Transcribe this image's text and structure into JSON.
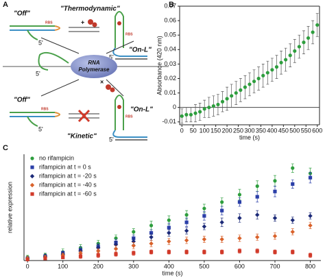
{
  "diagram": {
    "panel_label": "A",
    "thermodynamic": "\"Thermodynamic\"",
    "kinetic": "\"Kinetic\"",
    "off_top": "\"Off\"",
    "on_top": "\"On-L\"",
    "off_bottom": "\"Off\"",
    "on_bottom": "\"On-L\"",
    "polymerase": [
      "RNA",
      "Polymerase"
    ],
    "rbs": [
      "RBS",
      "RBS",
      "RBS",
      "RBS"
    ],
    "five_prime": [
      "5'",
      "5'",
      "5'",
      "5'",
      "5'"
    ],
    "plus": "+",
    "times": "×"
  },
  "chart_data": [
    {
      "type": "scatter",
      "panel_label": "B",
      "xlabel": "time (s)",
      "ylabel": "Absorbance (420 nm)",
      "xlim": [
        -10,
        610
      ],
      "ylim": [
        -0.012,
        0.07
      ],
      "xticks": [
        0,
        50,
        100,
        150,
        200,
        250,
        300,
        350,
        400,
        450,
        500,
        550,
        600
      ],
      "yticks": [
        -0.01,
        0,
        0.01,
        0.02,
        0.03,
        0.04,
        0.05,
        0.06,
        0.07
      ],
      "zero_line": true,
      "series": [
        {
          "color": "#2e9e3e",
          "marker": "circle",
          "x": [
            0,
            20,
            40,
            60,
            80,
            100,
            120,
            140,
            160,
            180,
            200,
            220,
            240,
            260,
            280,
            300,
            320,
            340,
            360,
            380,
            400,
            420,
            440,
            460,
            480,
            500,
            520,
            540,
            560,
            580,
            600
          ],
          "values": [
            -0.006,
            -0.005,
            -0.005,
            -0.004,
            -0.003,
            -0.001,
            0.0,
            0.001,
            0.002,
            0.004,
            0.006,
            0.008,
            0.01,
            0.012,
            0.014,
            0.016,
            0.018,
            0.02,
            0.022,
            0.024,
            0.026,
            0.028,
            0.031,
            0.033,
            0.036,
            0.039,
            0.042,
            0.045,
            0.048,
            0.052,
            0.057
          ],
          "errors": [
            0.005,
            0.005,
            0.005,
            0.006,
            0.006,
            0.006,
            0.007,
            0.007,
            0.007,
            0.007,
            0.008,
            0.008,
            0.008,
            0.008,
            0.008,
            0.008,
            0.008,
            0.008,
            0.008,
            0.008,
            0.008,
            0.008,
            0.008,
            0.008,
            0.008,
            0.008,
            0.008,
            0.008,
            0.008,
            0.008,
            0.008
          ]
        }
      ]
    },
    {
      "type": "scatter",
      "panel_label": "C",
      "xlabel": "time (s)",
      "ylabel": "relative expression",
      "xlim": [
        -10,
        830
      ],
      "ylim": [
        0,
        1
      ],
      "xticks": [
        0,
        100,
        200,
        300,
        400,
        500,
        600,
        700,
        800
      ],
      "legend": "upper left",
      "series": [
        {
          "name": "no rifampicin",
          "color": "#2e9e3e",
          "marker": "circle",
          "x": [
            0,
            50,
            100,
            150,
            200,
            250,
            300,
            350,
            400,
            450,
            500,
            550,
            600,
            650,
            700,
            750,
            800
          ],
          "values": [
            0.03,
            0.05,
            0.08,
            0.12,
            0.16,
            0.21,
            0.27,
            0.33,
            0.38,
            0.43,
            0.49,
            0.55,
            0.62,
            0.7,
            0.75,
            0.87,
            0.82
          ],
          "errors": [
            0.02,
            0.02,
            0.03,
            0.03,
            0.03,
            0.03,
            0.03,
            0.04,
            0.04,
            0.04,
            0.04,
            0.04,
            0.05,
            0.05,
            0.05,
            0.04,
            0.05
          ]
        },
        {
          "name": "rifampicin at t = 0 s",
          "color": "#2b3fa8",
          "marker": "square",
          "x": [
            0,
            50,
            100,
            150,
            200,
            250,
            300,
            350,
            400,
            450,
            500,
            550,
            600,
            650,
            700,
            750,
            800
          ],
          "values": [
            0.02,
            0.04,
            0.07,
            0.1,
            0.13,
            0.17,
            0.21,
            0.26,
            0.31,
            0.36,
            0.42,
            0.47,
            0.55,
            0.6,
            0.65,
            0.72,
            0.78
          ],
          "errors": [
            0.02,
            0.02,
            0.02,
            0.03,
            0.03,
            0.03,
            0.03,
            0.03,
            0.04,
            0.04,
            0.04,
            0.04,
            0.04,
            0.05,
            0.05,
            0.04,
            0.05
          ]
        },
        {
          "name": "rifampicin at t = -20 s",
          "color": "#1c2a78",
          "marker": "diamond",
          "x": [
            0,
            50,
            100,
            150,
            200,
            250,
            300,
            350,
            400,
            450,
            500,
            550,
            600,
            650,
            700,
            750,
            800
          ],
          "values": [
            0.02,
            0.04,
            0.06,
            0.09,
            0.12,
            0.15,
            0.18,
            0.22,
            0.26,
            0.28,
            0.32,
            0.36,
            0.4,
            0.43,
            0.4,
            0.38,
            0.42
          ],
          "errors": [
            0.02,
            0.02,
            0.02,
            0.02,
            0.03,
            0.03,
            0.03,
            0.03,
            0.03,
            0.03,
            0.03,
            0.04,
            0.04,
            0.04,
            0.03,
            0.03,
            0.03
          ]
        },
        {
          "name": "rifampicin at t = -40 s",
          "color": "#d9622b",
          "marker": "diamond",
          "x": [
            0,
            50,
            100,
            150,
            200,
            250,
            300,
            350,
            400,
            450,
            500,
            550,
            600,
            650,
            700,
            750,
            800
          ],
          "values": [
            0.02,
            0.03,
            0.05,
            0.07,
            0.09,
            0.11,
            0.14,
            0.16,
            0.18,
            0.19,
            0.2,
            0.2,
            0.21,
            0.22,
            0.23,
            0.27,
            0.33
          ],
          "errors": [
            0.02,
            0.02,
            0.02,
            0.02,
            0.02,
            0.03,
            0.03,
            0.03,
            0.03,
            0.03,
            0.03,
            0.03,
            0.03,
            0.03,
            0.03,
            0.03,
            0.03
          ]
        },
        {
          "name": "rifampicin at t = -60 s",
          "color": "#d13a2a",
          "marker": "square",
          "x": [
            0,
            50,
            100,
            150,
            200,
            250,
            300,
            350,
            400,
            450,
            500,
            550,
            600,
            650,
            700,
            750,
            800
          ],
          "values": [
            0.01,
            0.02,
            0.03,
            0.04,
            0.05,
            0.06,
            0.07,
            0.08,
            0.08,
            0.08,
            0.08,
            0.08,
            0.09,
            0.09,
            0.08,
            0.08,
            0.05
          ],
          "errors": [
            0.01,
            0.01,
            0.01,
            0.02,
            0.02,
            0.02,
            0.02,
            0.02,
            0.02,
            0.02,
            0.02,
            0.02,
            0.02,
            0.02,
            0.02,
            0.02,
            0.02
          ]
        }
      ]
    }
  ]
}
